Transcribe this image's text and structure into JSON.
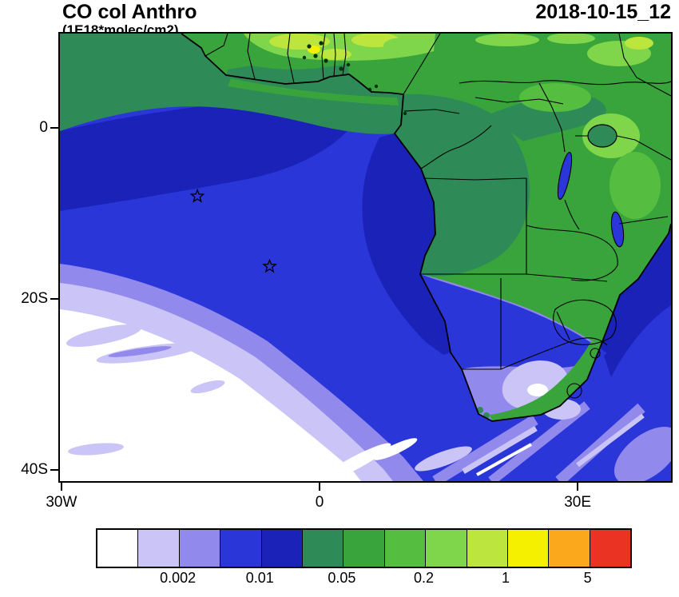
{
  "header": {
    "title": "CO col Anthro",
    "subtitle": "(1E18*molec/cm2)",
    "date": "2018-10-15_12"
  },
  "axes": {
    "y_ticks": [
      {
        "label": "0",
        "lat": 0
      },
      {
        "label": "20S",
        "lat": -20
      },
      {
        "label": "40S",
        "lat": -40
      }
    ],
    "x_ticks": [
      {
        "label": "30W",
        "lon": -30
      },
      {
        "label": "0",
        "lon": 0
      },
      {
        "label": "30E",
        "lon": 30
      }
    ]
  },
  "colorbar": {
    "n_cells": 13,
    "colors": [
      "#FFFFFF",
      "#CBC5F7",
      "#9289EC",
      "#2B36D9",
      "#1A22B8",
      "#2E8B57",
      "#3AA43C",
      "#55BE41",
      "#7FD64A",
      "#BCE53E",
      "#F4F000",
      "#FBA81C",
      "#EB3323"
    ],
    "labels": [
      {
        "text": "0.002",
        "edge": 2
      },
      {
        "text": "0.01",
        "edge": 4
      },
      {
        "text": "0.05",
        "edge": 6
      },
      {
        "text": "0.2",
        "edge": 8
      },
      {
        "text": "1",
        "edge": 10
      },
      {
        "text": "5",
        "edge": 12
      }
    ]
  },
  "chart_data": {
    "type": "heatmap",
    "title": "CO col Anthro",
    "units": "1E18*molec/cm2",
    "timestamp": "2018-10-15_12",
    "lon_range": [
      -30.5,
      41
    ],
    "lat_range": [
      -42,
      11
    ],
    "x_tick_lons": [
      -30,
      0,
      30
    ],
    "y_tick_lats": [
      0,
      -20,
      -40
    ],
    "contour_levels": [
      0.001,
      0.002,
      0.005,
      0.01,
      0.02,
      0.05,
      0.1,
      0.2,
      0.5,
      1,
      2,
      5
    ],
    "level_colors": [
      "#FFFFFF",
      "#CBC5F7",
      "#9289EC",
      "#2B36D9",
      "#1A22B8",
      "#2E8B57",
      "#3AA43C",
      "#55BE41",
      "#7FD64A",
      "#BCE53E",
      "#F4F000",
      "#FBA81C",
      "#EB3323"
    ],
    "colorbar_labeled_values": [
      "0.002",
      "0.01",
      "0.05",
      "0.2",
      "1",
      "5"
    ],
    "legend_position": "bottom",
    "markers": [
      {
        "type": "star",
        "lon": -14.2,
        "lat": -8.0
      },
      {
        "type": "star",
        "lon": -5.8,
        "lat": -16.2
      }
    ]
  }
}
